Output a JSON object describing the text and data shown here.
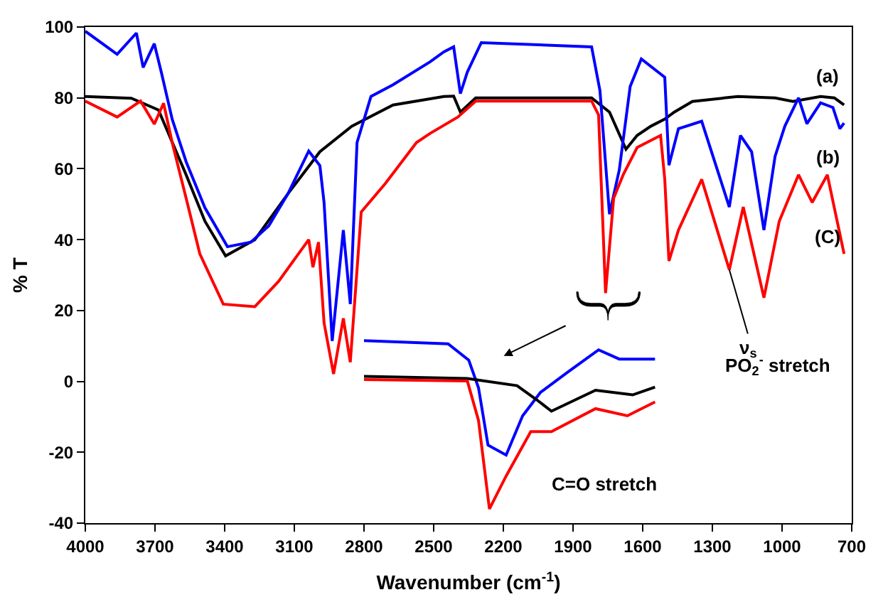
{
  "chart_data": {
    "type": "line",
    "xlabel": "Wavenumber (cm$^{-1}$)",
    "ylabel": "% T",
    "xlim": [
      4000,
      700
    ],
    "xticks": [
      4000,
      3700,
      3400,
      3100,
      2800,
      2500,
      2200,
      1900,
      1600,
      1300,
      1000,
      700
    ],
    "ylim": [
      -40,
      100
    ],
    "yticks": [
      -40,
      -20,
      0,
      20,
      40,
      60,
      80,
      100
    ],
    "marker": "none",
    "line_style": "solid",
    "series": [
      {
        "color": "#000000",
        "x": [
          4000,
          3802,
          3685,
          3566,
          3485,
          3396,
          3270,
          3127,
          2990,
          2853,
          2675,
          2456,
          2414,
          2385,
          2319,
          1820,
          1743,
          1672,
          1624,
          1565,
          1505,
          1464,
          1386,
          1190,
          1030,
          953,
          834,
          775,
          733
        ],
        "values": [
          80.4,
          79.9,
          76.6,
          58.3,
          45.2,
          35.4,
          40,
          53,
          64.8,
          72,
          78,
          80.4,
          80.5,
          76,
          80,
          80,
          76,
          65.5,
          69.4,
          72,
          74,
          76,
          79,
          80.4,
          80,
          79,
          80.4,
          80,
          78
        ]
      },
      {
        "color": "#0000ff",
        "x": [
          4000,
          3863,
          3780,
          3751,
          3703,
          3673,
          3626,
          3566,
          3485,
          3388,
          3287,
          3210,
          3127,
          3038,
          2990,
          2972,
          2937,
          2889,
          2859,
          2830,
          2770,
          2675,
          2515,
          2456,
          2414,
          2385,
          2355,
          2295,
          1820,
          1784,
          1743,
          1701,
          1654,
          1606,
          1505,
          1487,
          1446,
          1346,
          1227,
          1179,
          1131,
          1078,
          1030,
          988,
          929,
          893,
          834,
          781,
          751,
          733
        ],
        "values": [
          98.8,
          92.3,
          98.3,
          88.6,
          95.3,
          87.3,
          74,
          62,
          49,
          38,
          39.3,
          43.9,
          53,
          65,
          60.9,
          50.5,
          11.4,
          42.7,
          21.8,
          67.4,
          80.4,
          83.7,
          90.2,
          93,
          94.4,
          81.2,
          87.3,
          95.6,
          94.4,
          82,
          47.2,
          59.6,
          83.2,
          91,
          85.8,
          61,
          71.3,
          73.4,
          49.2,
          69.4,
          64.8,
          42.7,
          63.5,
          72,
          80,
          72.7,
          78.6,
          77.3,
          71.3,
          72.9
        ]
      },
      {
        "color": "#ff0000",
        "x": [
          4000,
          3863,
          3762,
          3703,
          3663,
          3626,
          3566,
          3507,
          3406,
          3270,
          3168,
          3038,
          3020,
          2996,
          2972,
          2931,
          2889,
          2859,
          2812,
          2711,
          2574,
          2515,
          2396,
          2319,
          1820,
          1790,
          1760,
          1725,
          1684,
          1624,
          1523,
          1505,
          1487,
          1446,
          1346,
          1227,
          1167,
          1078,
          1012,
          929,
          870,
          805,
          733
        ],
        "values": [
          79.1,
          74.6,
          79.1,
          72.6,
          78.5,
          67.4,
          51.7,
          36,
          21.8,
          21.1,
          28.2,
          40,
          32.2,
          39.3,
          16.5,
          2.1,
          17.8,
          5.4,
          47.8,
          55.6,
          67.4,
          70,
          74.6,
          79.1,
          79.1,
          75.2,
          24.9,
          51.7,
          58.3,
          66,
          69.4,
          57,
          34,
          42.7,
          57,
          31.5,
          49.2,
          23.6,
          45.2,
          58.3,
          50.5,
          58.3,
          36
        ]
      },
      {
        "color": "#0000ff",
        "x": [
          2800,
          2438,
          2349,
          2307,
          2266,
          2188,
          2117,
          2040,
          1921,
          1790,
          1701,
          1547
        ],
        "values": [
          11.5,
          10.6,
          6,
          -1.8,
          -18,
          -20.8,
          -9.7,
          -3.1,
          2.7,
          8.9,
          6.3,
          6.3
        ]
      },
      {
        "color": "#000000",
        "x": [
          2800,
          2355,
          2141,
          2058,
          1993,
          1803,
          1643,
          1547
        ],
        "values": [
          1.4,
          0.8,
          -1.2,
          -5.1,
          -8.4,
          -2.5,
          -3.8,
          -1.6
        ]
      },
      {
        "color": "#ff0000",
        "x": [
          2800,
          2355,
          2307,
          2260,
          2188,
          2082,
          1993,
          1803,
          1666,
          1547
        ],
        "values": [
          0.5,
          0.1,
          -11,
          -36,
          -26.7,
          -14.2,
          -14.2,
          -7.7,
          -9.7,
          -5.8
        ]
      }
    ],
    "annotations": [
      "(a)",
      "(b)",
      "(C)",
      {
        "text": "ν$_{s}$",
        "x": 1227,
        "y": 31.5
      },
      "PO$_{2}$$^{-}$ stretch",
      "C=O stretch"
    ]
  }
}
